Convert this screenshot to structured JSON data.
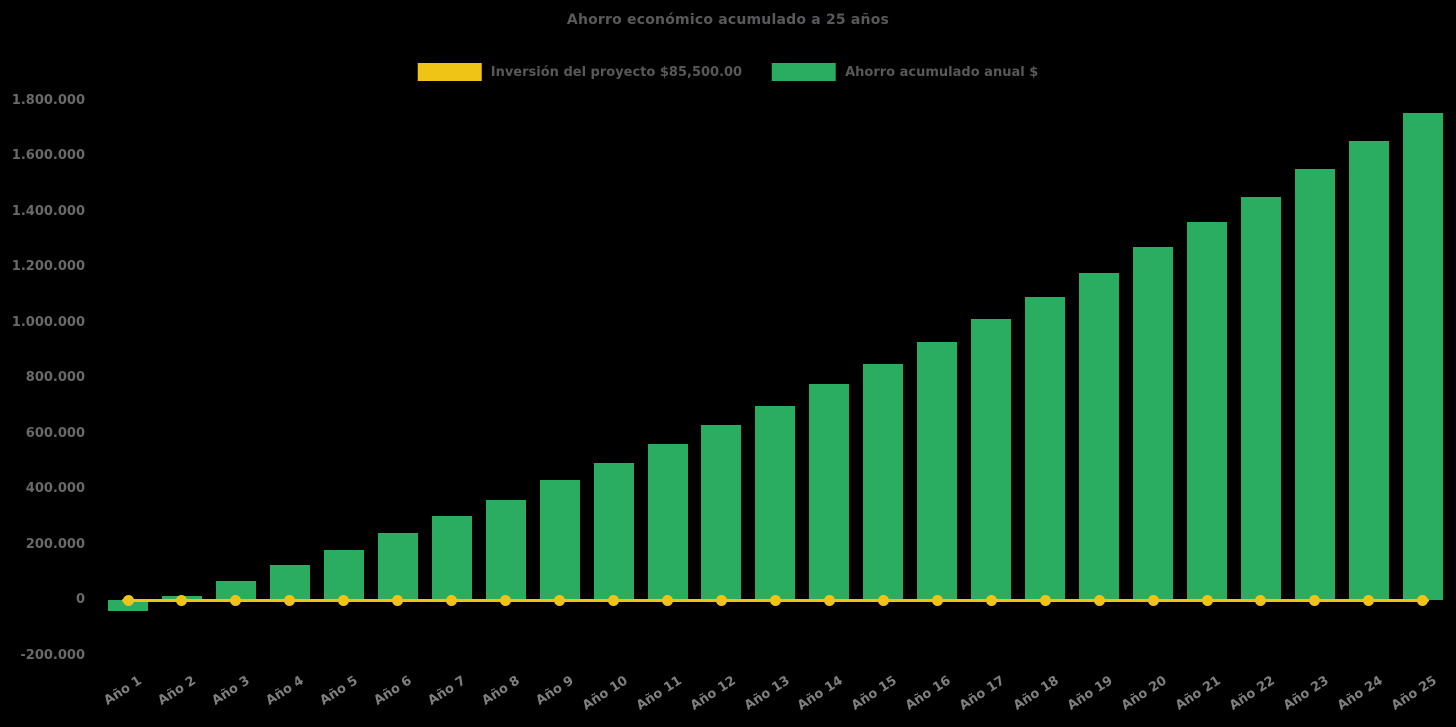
{
  "title": "Ahorro económico acumulado a 25 años",
  "chart_data": {
    "type": "bar",
    "title": "Ahorro económico acumulado a 25 años",
    "categories": [
      "Año 1",
      "Año 2",
      "Año 3",
      "Año 4",
      "Año 5",
      "Año 6",
      "Año 7",
      "Año 8",
      "Año 9",
      "Año 10",
      "Año 11",
      "Año 12",
      "Año 13",
      "Año 14",
      "Año 15",
      "Año 16",
      "Año 17",
      "Año 18",
      "Año 19",
      "Año 20",
      "Año 21",
      "Año 22",
      "Año 23",
      "Año 24",
      "Año 25"
    ],
    "series": [
      {
        "name": "Ahorro acumulado anual $",
        "type": "bar",
        "color": "#2AAD60",
        "values": [
          -38000,
          16000,
          70000,
          125000,
          180000,
          242000,
          303000,
          362000,
          432000,
          494000,
          562000,
          632000,
          700000,
          780000,
          852000,
          929000,
          1012000,
          1092000,
          1180000,
          1271000,
          1362000,
          1453000,
          1553000,
          1655000,
          1756000
        ]
      },
      {
        "name": "Inversión del proyecto $85,500.00",
        "type": "line",
        "color": "#F0C417",
        "stated_investment_value": 85500,
        "plotted_constant_value": 0,
        "marker": "circle"
      }
    ],
    "ylim": [
      -200000,
      1800000
    ],
    "y_ticks": [
      {
        "value": 1800000,
        "label": "1.800.000"
      },
      {
        "value": 1600000,
        "label": "1.600.000"
      },
      {
        "value": 1400000,
        "label": "1.400.000"
      },
      {
        "value": 1200000,
        "label": "1.200.000"
      },
      {
        "value": 1000000,
        "label": "1.000.000"
      },
      {
        "value": 800000,
        "label": "800.000"
      },
      {
        "value": 600000,
        "label": "600.000"
      },
      {
        "value": 400000,
        "label": "400.000"
      },
      {
        "value": 200000,
        "label": "200.000"
      },
      {
        "value": 0,
        "label": "0"
      },
      {
        "value": -200000,
        "label": "-200.000"
      }
    ],
    "xlabel": "",
    "ylabel": "",
    "grid": false,
    "legend_position": "top-center",
    "background_color": "#000000"
  }
}
